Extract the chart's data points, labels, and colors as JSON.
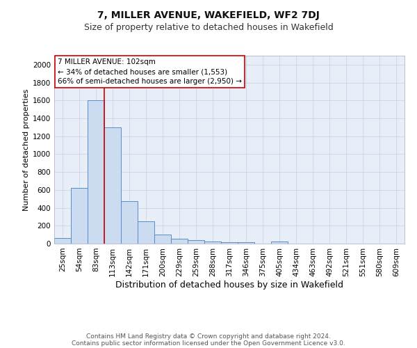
{
  "title": "7, MILLER AVENUE, WAKEFIELD, WF2 7DJ",
  "subtitle": "Size of property relative to detached houses in Wakefield",
  "xlabel": "Distribution of detached houses by size in Wakefield",
  "ylabel": "Number of detached properties",
  "categories": [
    "25sqm",
    "54sqm",
    "83sqm",
    "113sqm",
    "142sqm",
    "171sqm",
    "200sqm",
    "229sqm",
    "259sqm",
    "288sqm",
    "317sqm",
    "346sqm",
    "375sqm",
    "405sqm",
    "434sqm",
    "463sqm",
    "492sqm",
    "521sqm",
    "551sqm",
    "580sqm",
    "609sqm"
  ],
  "values": [
    65,
    625,
    1600,
    1300,
    475,
    250,
    100,
    55,
    40,
    25,
    15,
    15,
    0,
    20,
    0,
    0,
    0,
    0,
    0,
    0,
    0
  ],
  "bar_color": "#ccdcf0",
  "bar_edge_color": "#5b8cc8",
  "redline_color": "#cc0000",
  "annotation_line1": "7 MILLER AVENUE: 102sqm",
  "annotation_line2": "← 34% of detached houses are smaller (1,553)",
  "annotation_line3": "66% of semi-detached houses are larger (2,950) →",
  "annotation_box_color": "#ffffff",
  "annotation_box_edge": "#cc0000",
  "ylim": [
    0,
    2100
  ],
  "yticks": [
    0,
    200,
    400,
    600,
    800,
    1000,
    1200,
    1400,
    1600,
    1800,
    2000
  ],
  "grid_color": "#c8d4e8",
  "background_color": "#e8eef8",
  "footer_line1": "Contains HM Land Registry data © Crown copyright and database right 2024.",
  "footer_line2": "Contains public sector information licensed under the Open Government Licence v3.0.",
  "title_fontsize": 10,
  "subtitle_fontsize": 9,
  "xlabel_fontsize": 9,
  "ylabel_fontsize": 8,
  "tick_fontsize": 7.5,
  "annotation_fontsize": 7.5,
  "footer_fontsize": 6.5
}
